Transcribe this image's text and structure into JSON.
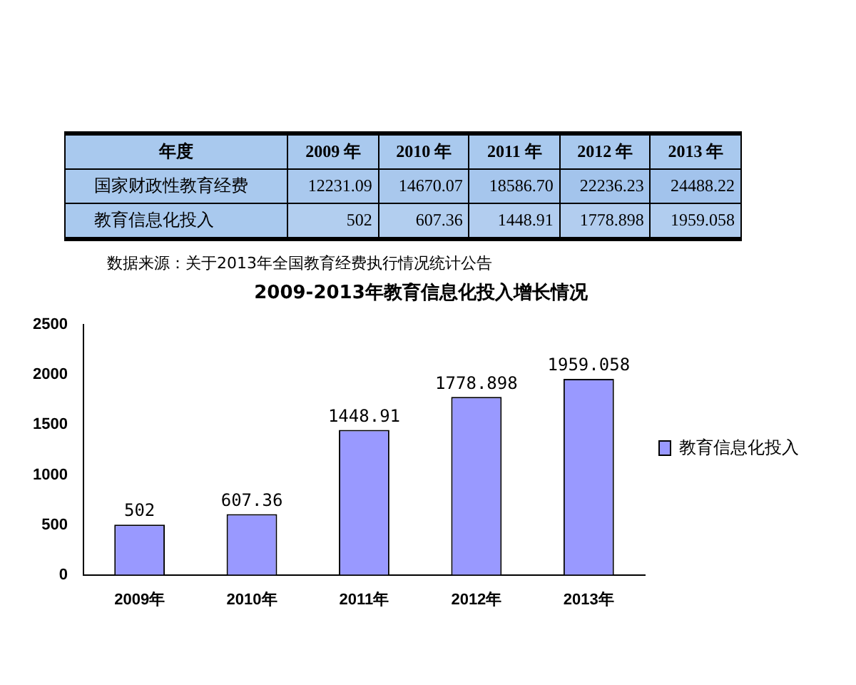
{
  "chart_data": [
    {
      "type": "heatmap",
      "xlabel": "年度",
      "categories": [
        "2009 年",
        "2010 年",
        "2011 年",
        "2012 年",
        "2013 年"
      ],
      "y_categories": [
        "国家财政性教育经费",
        "教育信息化投入"
      ],
      "cells": [
        [
          12231.09,
          14670.07,
          18586.7,
          22236.23,
          24488.22
        ],
        [
          502,
          607.36,
          1448.91,
          1778.898,
          1959.058
        ]
      ],
      "cell_labels": [
        [
          "12231.09",
          "14670.07",
          "18586.70",
          "22236.23",
          "24488.22"
        ],
        [
          "502",
          "607.36",
          "1448.91",
          "1778.898",
          "1959.058"
        ]
      ],
      "annotations": [
        "数据来源：关于2013年全国教育经费执行情况统计公告"
      ]
    },
    {
      "type": "bar",
      "title": "2009-2013年教育信息化投入增长情况",
      "categories": [
        "2009年",
        "2010年",
        "2011年",
        "2012年",
        "2013年"
      ],
      "series": [
        {
          "name": "教育信息化投入",
          "color": "#9999ff",
          "values": [
            502,
            607.36,
            1448.91,
            1778.898,
            1959.058
          ]
        }
      ],
      "ylim": [
        0,
        2500
      ],
      "yticks": [
        0,
        500,
        1000,
        1500,
        2000,
        2500
      ],
      "data_labels": true,
      "legend": "right"
    }
  ]
}
